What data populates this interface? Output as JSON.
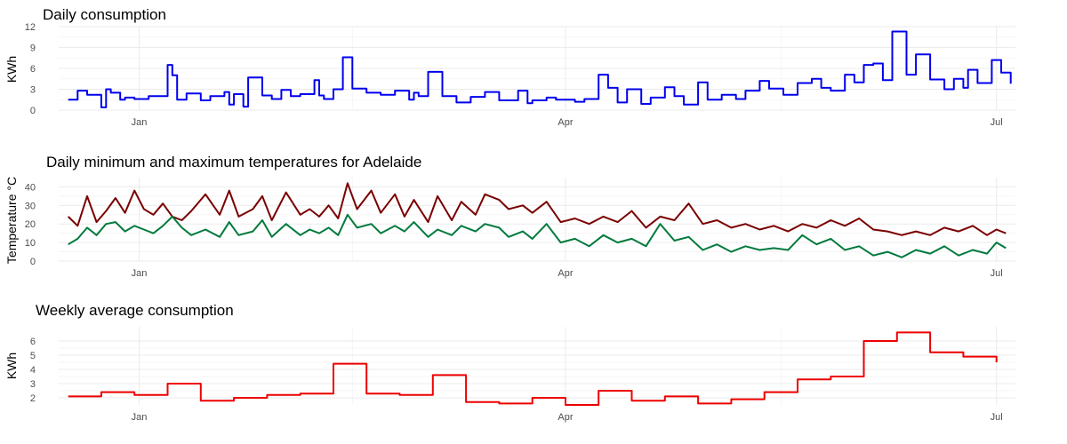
{
  "chart_data": [
    {
      "type": "line",
      "title": "Daily consumption",
      "xlabel": "",
      "ylabel": "KWh",
      "ylim": [
        0,
        12
      ],
      "yticks": [
        0,
        3,
        6,
        9,
        12
      ],
      "xlim": [
        "2012-12-15",
        "2013-07-05"
      ],
      "xticks": [
        {
          "date": "2013-01-01",
          "label": "Jan"
        },
        {
          "date": "2013-04-01",
          "label": "Apr"
        },
        {
          "date": "2013-07-01",
          "label": "Jul"
        }
      ],
      "grid": true,
      "series": [
        {
          "color": "#0000ee",
          "step": true,
          "x": [
            "2012-12-17",
            "2012-12-19",
            "2012-12-21",
            "2012-12-24",
            "2012-12-25",
            "2012-12-26",
            "2012-12-28",
            "2012-12-29",
            "2012-12-31",
            "2013-01-03",
            "2013-01-07",
            "2013-01-08",
            "2013-01-09",
            "2013-01-11",
            "2013-01-14",
            "2013-01-16",
            "2013-01-19",
            "2013-01-20",
            "2013-01-21",
            "2013-01-23",
            "2013-01-24",
            "2013-01-27",
            "2013-01-29",
            "2013-01-31",
            "2013-02-02",
            "2013-02-04",
            "2013-02-07",
            "2013-02-08",
            "2013-02-09",
            "2013-02-11",
            "2013-02-13",
            "2013-02-15",
            "2013-02-18",
            "2013-02-21",
            "2013-02-24",
            "2013-02-27",
            "2013-02-28",
            "2013-03-01",
            "2013-03-03",
            "2013-03-06",
            "2013-03-09",
            "2013-03-12",
            "2013-03-15",
            "2013-03-18",
            "2013-03-22",
            "2013-03-24",
            "2013-03-25",
            "2013-03-28",
            "2013-03-30",
            "2013-04-03",
            "2013-04-05",
            "2013-04-08",
            "2013-04-10",
            "2013-04-12",
            "2013-04-14",
            "2013-04-17",
            "2013-04-19",
            "2013-04-22",
            "2013-04-24",
            "2013-04-26",
            "2013-04-29",
            "2013-05-01",
            "2013-05-04",
            "2013-05-07",
            "2013-05-09",
            "2013-05-12",
            "2013-05-14",
            "2013-05-17",
            "2013-05-20",
            "2013-05-23",
            "2013-05-25",
            "2013-05-27",
            "2013-05-30",
            "2013-06-01",
            "2013-06-03",
            "2013-06-05",
            "2013-06-07",
            "2013-06-09",
            "2013-06-12",
            "2013-06-14",
            "2013-06-17",
            "2013-06-20",
            "2013-06-22",
            "2013-06-24",
            "2013-06-25",
            "2013-06-27",
            "2013-06-30",
            "2013-07-02",
            "2013-07-04"
          ],
          "values": [
            1.5,
            2.8,
            2.2,
            0.4,
            3.0,
            2.5,
            1.5,
            1.8,
            1.6,
            2.0,
            6.5,
            5.0,
            1.5,
            2.4,
            1.4,
            2.0,
            2.6,
            0.8,
            2.3,
            0.5,
            4.7,
            2.1,
            1.6,
            2.9,
            2.0,
            2.3,
            4.3,
            2.1,
            1.6,
            3.0,
            7.6,
            3.1,
            2.5,
            2.2,
            2.8,
            1.5,
            2.5,
            2.0,
            5.5,
            2.0,
            1.1,
            1.9,
            2.6,
            1.4,
            2.8,
            1.0,
            1.4,
            1.8,
            1.5,
            1.2,
            1.6,
            5.1,
            3.2,
            1.1,
            3.0,
            0.9,
            1.8,
            3.3,
            2.0,
            0.8,
            4.0,
            1.5,
            2.2,
            1.6,
            2.8,
            4.2,
            3.1,
            2.2,
            3.9,
            4.5,
            3.2,
            2.8,
            5.1,
            4.0,
            6.5,
            6.7,
            4.3,
            11.3,
            5.1,
            8.0,
            4.4,
            3.0,
            4.5,
            3.2,
            5.8,
            3.9,
            7.2,
            5.4,
            3.8
          ]
        }
      ]
    },
    {
      "type": "line",
      "title": "Daily minimum and maximum temperatures for Adelaide",
      "xlabel": "",
      "ylabel": "Temperature °C",
      "ylim": [
        0,
        45
      ],
      "yticks": [
        0,
        10,
        20,
        30,
        40
      ],
      "xlim": [
        "2012-12-15",
        "2013-07-05"
      ],
      "xticks": [
        {
          "date": "2013-01-01",
          "label": "Jan"
        },
        {
          "date": "2013-04-01",
          "label": "Apr"
        },
        {
          "date": "2013-07-01",
          "label": "Jul"
        }
      ],
      "grid": true,
      "series": [
        {
          "color": "#7a0000",
          "x": [
            "2012-12-17",
            "2012-12-19",
            "2012-12-21",
            "2012-12-23",
            "2012-12-25",
            "2012-12-27",
            "2012-12-29",
            "2012-12-31",
            "2013-01-02",
            "2013-01-04",
            "2013-01-06",
            "2013-01-08",
            "2013-01-10",
            "2013-01-12",
            "2013-01-15",
            "2013-01-18",
            "2013-01-20",
            "2013-01-22",
            "2013-01-25",
            "2013-01-27",
            "2013-01-29",
            "2013-02-01",
            "2013-02-04",
            "2013-02-06",
            "2013-02-08",
            "2013-02-10",
            "2013-02-12",
            "2013-02-14",
            "2013-02-16",
            "2013-02-19",
            "2013-02-21",
            "2013-02-24",
            "2013-02-26",
            "2013-02-28",
            "2013-03-03",
            "2013-03-05",
            "2013-03-08",
            "2013-03-10",
            "2013-03-13",
            "2013-03-15",
            "2013-03-18",
            "2013-03-20",
            "2013-03-23",
            "2013-03-25",
            "2013-03-28",
            "2013-03-31",
            "2013-04-03",
            "2013-04-06",
            "2013-04-09",
            "2013-04-12",
            "2013-04-15",
            "2013-04-18",
            "2013-04-21",
            "2013-04-24",
            "2013-04-27",
            "2013-04-30",
            "2013-05-03",
            "2013-05-06",
            "2013-05-09",
            "2013-05-12",
            "2013-05-15",
            "2013-05-18",
            "2013-05-21",
            "2013-05-24",
            "2013-05-27",
            "2013-05-30",
            "2013-06-02",
            "2013-06-05",
            "2013-06-08",
            "2013-06-11",
            "2013-06-14",
            "2013-06-17",
            "2013-06-20",
            "2013-06-23",
            "2013-06-26",
            "2013-06-29",
            "2013-07-01",
            "2013-07-03"
          ],
          "values": [
            24,
            19,
            35,
            21,
            27,
            34,
            26,
            38,
            28,
            25,
            31,
            24,
            22,
            27,
            36,
            25,
            38,
            24,
            28,
            35,
            22,
            37,
            25,
            28,
            24,
            30,
            23,
            42,
            28,
            38,
            26,
            36,
            24,
            33,
            21,
            35,
            22,
            32,
            25,
            36,
            33,
            28,
            30,
            26,
            32,
            21,
            23,
            20,
            24,
            21,
            27,
            18,
            24,
            22,
            31,
            20,
            22,
            18,
            20,
            17,
            19,
            16,
            20,
            18,
            22,
            19,
            23,
            17,
            16,
            14,
            16,
            14,
            18,
            16,
            19,
            14,
            17,
            15
          ]
        },
        {
          "color": "#007a3d",
          "x": [
            "2012-12-17",
            "2012-12-19",
            "2012-12-21",
            "2012-12-23",
            "2012-12-25",
            "2012-12-27",
            "2012-12-29",
            "2012-12-31",
            "2013-01-02",
            "2013-01-04",
            "2013-01-06",
            "2013-01-08",
            "2013-01-10",
            "2013-01-12",
            "2013-01-15",
            "2013-01-18",
            "2013-01-20",
            "2013-01-22",
            "2013-01-25",
            "2013-01-27",
            "2013-01-29",
            "2013-02-01",
            "2013-02-04",
            "2013-02-06",
            "2013-02-08",
            "2013-02-10",
            "2013-02-12",
            "2013-02-14",
            "2013-02-16",
            "2013-02-19",
            "2013-02-21",
            "2013-02-24",
            "2013-02-26",
            "2013-02-28",
            "2013-03-03",
            "2013-03-05",
            "2013-03-08",
            "2013-03-10",
            "2013-03-13",
            "2013-03-15",
            "2013-03-18",
            "2013-03-20",
            "2013-03-23",
            "2013-03-25",
            "2013-03-28",
            "2013-03-31",
            "2013-04-03",
            "2013-04-06",
            "2013-04-09",
            "2013-04-12",
            "2013-04-15",
            "2013-04-18",
            "2013-04-21",
            "2013-04-24",
            "2013-04-27",
            "2013-04-30",
            "2013-05-03",
            "2013-05-06",
            "2013-05-09",
            "2013-05-12",
            "2013-05-15",
            "2013-05-18",
            "2013-05-21",
            "2013-05-24",
            "2013-05-27",
            "2013-05-30",
            "2013-06-02",
            "2013-06-05",
            "2013-06-08",
            "2013-06-11",
            "2013-06-14",
            "2013-06-17",
            "2013-06-20",
            "2013-06-23",
            "2013-06-26",
            "2013-06-29",
            "2013-07-01",
            "2013-07-03"
          ],
          "values": [
            9,
            12,
            18,
            14,
            20,
            21,
            16,
            19,
            17,
            15,
            19,
            24,
            18,
            14,
            17,
            13,
            21,
            14,
            16,
            22,
            13,
            20,
            14,
            17,
            15,
            18,
            14,
            25,
            18,
            20,
            15,
            19,
            16,
            21,
            13,
            17,
            14,
            19,
            16,
            20,
            18,
            13,
            16,
            12,
            20,
            10,
            12,
            8,
            14,
            10,
            12,
            8,
            20,
            11,
            13,
            6,
            9,
            5,
            8,
            6,
            7,
            6,
            14,
            9,
            12,
            6,
            8,
            3,
            5,
            2,
            6,
            4,
            8,
            3,
            6,
            4,
            10,
            7
          ]
        }
      ]
    },
    {
      "type": "line",
      "title": "Weekly average consumption",
      "xlabel": "",
      "ylabel": "KWh",
      "ylim": [
        1.5,
        7
      ],
      "yticks": [
        2,
        3,
        4,
        5,
        6
      ],
      "xlim": [
        "2012-12-15",
        "2013-07-05"
      ],
      "xticks": [
        {
          "date": "2013-01-01",
          "label": "Jan"
        },
        {
          "date": "2013-04-01",
          "label": "Apr"
        },
        {
          "date": "2013-07-01",
          "label": "Jul"
        }
      ],
      "grid": true,
      "series": [
        {
          "color": "#ee0000",
          "step": true,
          "x": [
            "2012-12-17",
            "2012-12-24",
            "2012-12-31",
            "2013-01-07",
            "2013-01-14",
            "2013-01-21",
            "2013-01-28",
            "2013-02-04",
            "2013-02-11",
            "2013-02-18",
            "2013-02-25",
            "2013-03-04",
            "2013-03-11",
            "2013-03-18",
            "2013-03-25",
            "2013-04-01",
            "2013-04-08",
            "2013-04-15",
            "2013-04-22",
            "2013-04-29",
            "2013-05-06",
            "2013-05-13",
            "2013-05-20",
            "2013-05-27",
            "2013-06-03",
            "2013-06-10",
            "2013-06-17",
            "2013-06-24",
            "2013-07-01"
          ],
          "values": [
            2.1,
            2.4,
            2.2,
            3.0,
            1.8,
            2.0,
            2.2,
            2.3,
            4.4,
            2.3,
            2.2,
            3.6,
            1.7,
            1.6,
            2.0,
            1.5,
            2.5,
            1.8,
            2.1,
            1.6,
            1.9,
            2.4,
            3.3,
            3.5,
            6.0,
            6.6,
            5.2,
            4.9,
            4.5
          ]
        }
      ]
    }
  ]
}
